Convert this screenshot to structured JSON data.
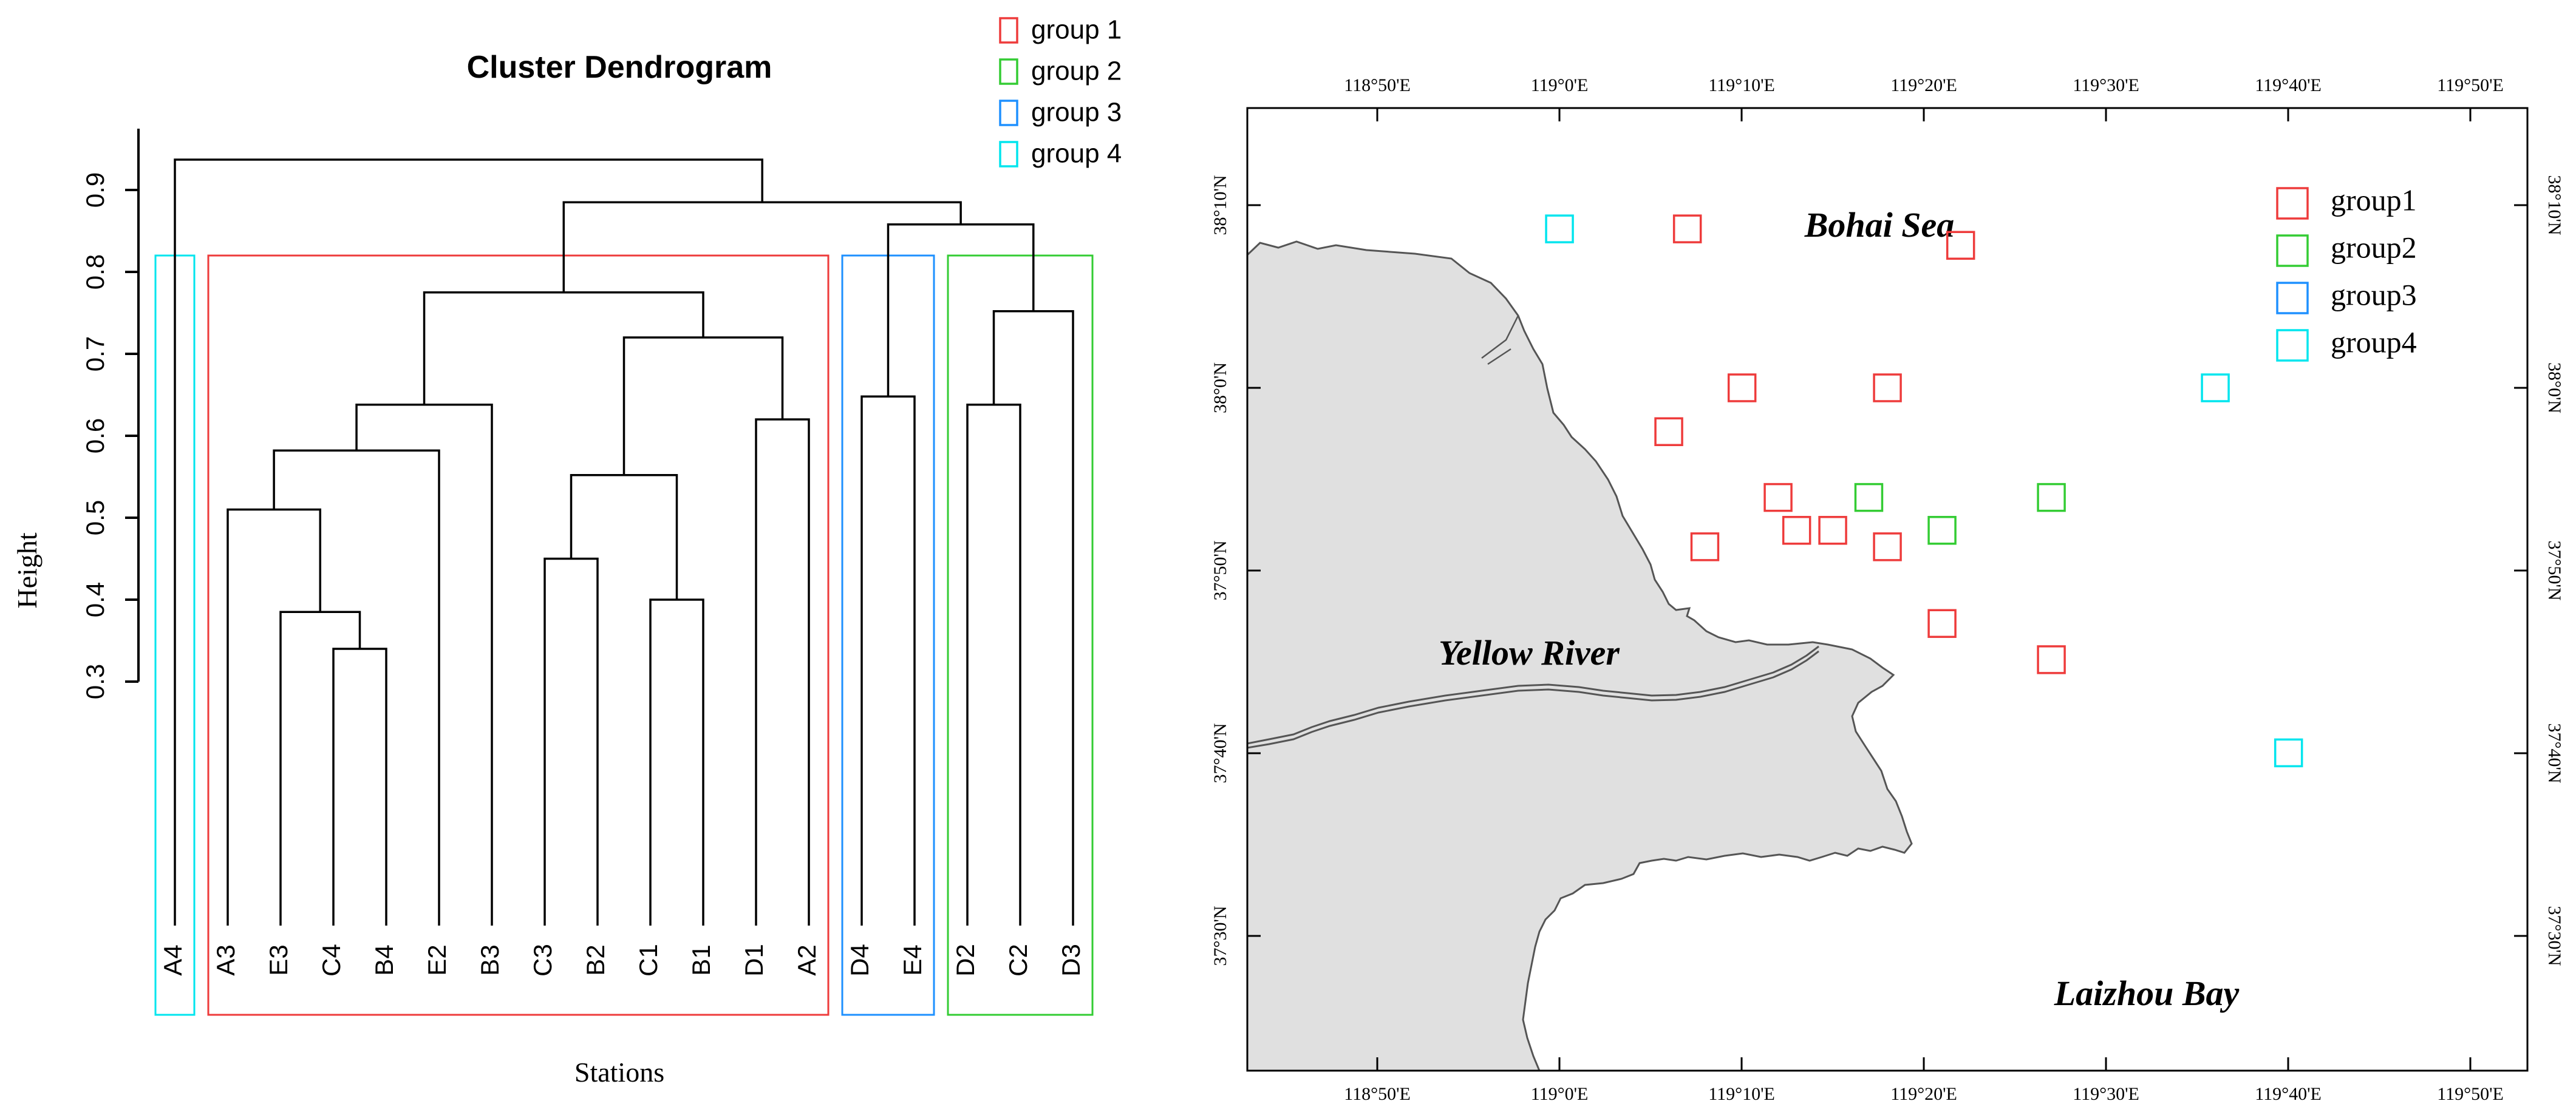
{
  "chart_data": [
    {
      "type": "dendrogram",
      "title": "Cluster Dendrogram",
      "xlabel": "Stations",
      "ylabel": "Height",
      "ylim": [
        0.3,
        0.9
      ],
      "yticks": [
        "0.3",
        "0.4",
        "0.5",
        "0.6",
        "0.7",
        "0.8",
        "0.9"
      ],
      "leaves": [
        "A4",
        "A3",
        "E3",
        "C4",
        "B4",
        "E2",
        "B3",
        "C3",
        "B2",
        "C1",
        "B1",
        "D1",
        "A2",
        "D4",
        "E4",
        "D2",
        "C2",
        "D3"
      ],
      "merges": [
        {
          "left": "C4",
          "right": "B4",
          "height": 0.34
        },
        {
          "left": "E3",
          "right": "C4+B4",
          "height": 0.385
        },
        {
          "left": "C1",
          "right": "B1",
          "height": 0.4
        },
        {
          "left": "C3",
          "right": "B2",
          "height": 0.45
        },
        {
          "left": "A3",
          "right": "E3+C4+B4",
          "height": 0.51
        },
        {
          "left": "C3+B2",
          "right": "C1+B1",
          "height": 0.552
        },
        {
          "left": "E2",
          "right": "A3 cluster",
          "height": 0.582
        },
        {
          "left": "D1",
          "right": "A2",
          "height": 0.62
        },
        {
          "left": "B3",
          "right": "A3 cluster + E2",
          "height": 0.638
        },
        {
          "left": "D2",
          "right": "C2",
          "height": 0.638
        },
        {
          "left": "D4",
          "right": "E4",
          "height": 0.648
        },
        {
          "left": "D1+A2",
          "right": "C3..B1",
          "height": 0.72
        },
        {
          "left": "D2+C2",
          "right": "D3",
          "height": 0.752
        },
        {
          "left": "A3..B3",
          "right": "C3..A2",
          "height": 0.775
        },
        {
          "left": "D4+E4",
          "right": "D2+C2+D3",
          "height": 0.858
        },
        {
          "left": "A3..A2",
          "right": "D4..D3",
          "height": 0.885
        },
        {
          "left": "A4",
          "right": "all others",
          "height": 0.937
        }
      ],
      "groups": [
        {
          "name": "group 1",
          "color": "#ee3b3b",
          "members": [
            "A3",
            "E3",
            "C4",
            "B4",
            "E2",
            "B3",
            "C3",
            "B2",
            "C1",
            "B1",
            "D1",
            "A2"
          ]
        },
        {
          "name": "group 2",
          "color": "#33cc33",
          "members": [
            "D2",
            "C2",
            "D3"
          ]
        },
        {
          "name": "group 3",
          "color": "#1e90ff",
          "members": [
            "D4",
            "E4"
          ]
        },
        {
          "name": "group 4",
          "color": "#00e5ee",
          "members": [
            "A4"
          ]
        }
      ],
      "legend": [
        "group 1",
        "group 2",
        "group 3",
        "group 4"
      ],
      "legend_position": "top-right"
    },
    {
      "type": "map",
      "lon_ticks": [
        "118°50'E",
        "119°0'E",
        "119°10'E",
        "119°20'E",
        "119°30'E",
        "119°40'E",
        "119°50'E"
      ],
      "lat_ticks": [
        "37°30'N",
        "37°40'N",
        "37°50'N",
        "38°0'N",
        "38°10'N"
      ],
      "place_labels": [
        "Bohai Sea",
        "Yellow River",
        "Laizhou Bay"
      ],
      "legend": [
        "group1",
        "group2",
        "group3",
        "group4"
      ],
      "legend_position": "top-right",
      "stations": [
        {
          "group": "group4",
          "lon": 119.0,
          "lat": 38.145
        },
        {
          "group": "group1",
          "lon": 119.117,
          "lat": 38.145
        },
        {
          "group": "group1",
          "lon": 119.367,
          "lat": 38.13
        },
        {
          "group": "group1",
          "lon": 119.167,
          "lat": 38.0
        },
        {
          "group": "group1",
          "lon": 119.3,
          "lat": 38.0
        },
        {
          "group": "group4",
          "lon": 119.6,
          "lat": 38.0
        },
        {
          "group": "group1",
          "lon": 119.1,
          "lat": 37.96
        },
        {
          "group": "group1",
          "lon": 119.2,
          "lat": 37.9
        },
        {
          "group": "group2",
          "lon": 119.283,
          "lat": 37.9
        },
        {
          "group": "group2",
          "lon": 119.45,
          "lat": 37.9
        },
        {
          "group": "group1",
          "lon": 119.217,
          "lat": 37.87
        },
        {
          "group": "group1",
          "lon": 119.25,
          "lat": 37.87
        },
        {
          "group": "group2",
          "lon": 119.35,
          "lat": 37.87
        },
        {
          "group": "group1",
          "lon": 119.133,
          "lat": 37.855
        },
        {
          "group": "group1",
          "lon": 119.3,
          "lat": 37.855
        },
        {
          "group": "group1",
          "lon": 119.35,
          "lat": 37.785
        },
        {
          "group": "group1",
          "lon": 119.45,
          "lat": 37.752
        },
        {
          "group": "group4",
          "lon": 119.667,
          "lat": 37.667
        }
      ]
    }
  ],
  "colors": {
    "group1": "#ee3b3b",
    "group2": "#33cc33",
    "group3": "#1e90ff",
    "group4": "#00e5ee",
    "land": "#e0e0e0"
  }
}
